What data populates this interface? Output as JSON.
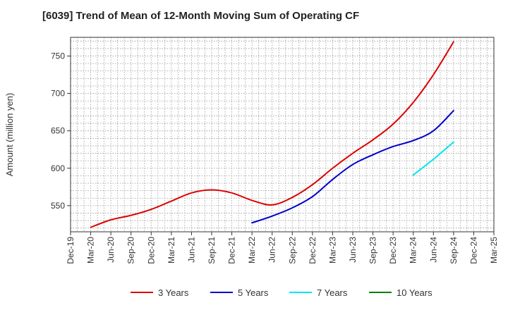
{
  "chart_data": {
    "type": "line",
    "title": "[6039]  Trend of Mean of 12-Month Moving Sum of Operating CF",
    "xlabel": "",
    "ylabel": "Amount (million yen)",
    "ylim": [
      515,
      775
    ],
    "yticks": [
      550,
      600,
      650,
      700,
      750
    ],
    "categories": [
      "Dec-19",
      "Mar-20",
      "Jun-20",
      "Sep-20",
      "Dec-20",
      "Mar-21",
      "Jun-21",
      "Sep-21",
      "Dec-21",
      "Mar-22",
      "Jun-22",
      "Sep-22",
      "Dec-22",
      "Mar-23",
      "Jun-23",
      "Sep-23",
      "Dec-23",
      "Mar-24",
      "Jun-24",
      "Sep-24",
      "Dec-24",
      "Mar-25"
    ],
    "grid": true,
    "legend_position": "bottom",
    "series": [
      {
        "name": "3 Years",
        "color": "#dd0000",
        "x": [
          "Mar-20",
          "Jun-20",
          "Sep-20",
          "Dec-20",
          "Mar-21",
          "Jun-21",
          "Sep-21",
          "Dec-21",
          "Mar-22",
          "Jun-22",
          "Sep-22",
          "Dec-22",
          "Mar-23",
          "Jun-23",
          "Sep-23",
          "Dec-23",
          "Mar-24",
          "Jun-24",
          "Sep-24"
        ],
        "values": [
          521,
          531,
          537,
          545,
          556,
          567,
          571,
          567,
          557,
          551,
          561,
          578,
          600,
          620,
          638,
          659,
          688,
          725,
          769
        ]
      },
      {
        "name": "5 Years",
        "color": "#0000cc",
        "x": [
          "Mar-22",
          "Jun-22",
          "Sep-22",
          "Dec-22",
          "Mar-23",
          "Jun-23",
          "Sep-23",
          "Dec-23",
          "Mar-24",
          "Jun-24",
          "Sep-24"
        ],
        "values": [
          527,
          536,
          547,
          562,
          585,
          605,
          618,
          629,
          637,
          650,
          677
        ]
      },
      {
        "name": "7 Years",
        "color": "#00e5ee",
        "x": [
          "Mar-24",
          "Jun-24",
          "Sep-24"
        ],
        "values": [
          591,
          612,
          635
        ]
      },
      {
        "name": "10 Years",
        "color": "#008000",
        "x": [],
        "values": []
      }
    ]
  }
}
